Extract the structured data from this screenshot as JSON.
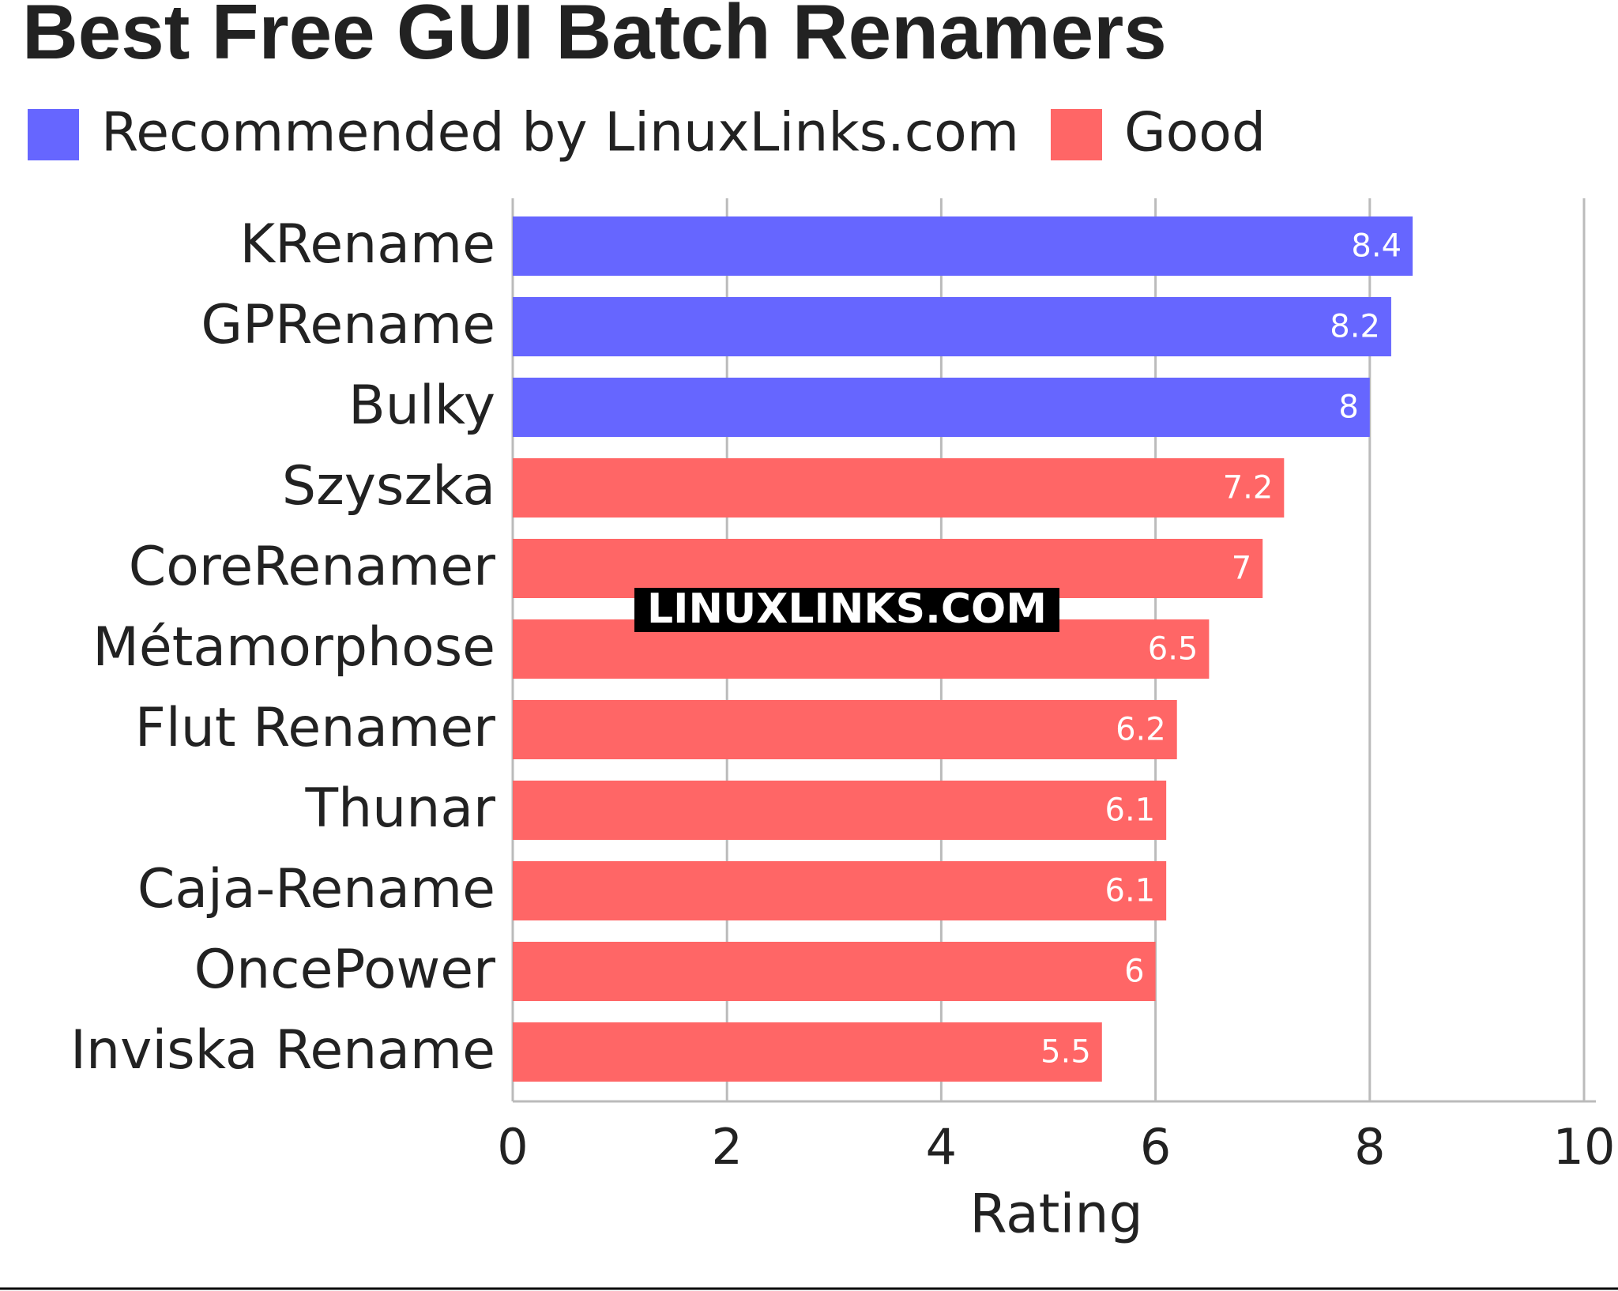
{
  "chart_data": {
    "type": "bar",
    "orientation": "horizontal",
    "title": "Best Free GUI Batch Renamers",
    "watermark": "LINUXLINKS.COM",
    "categories": [
      "KRename",
      "GPRename",
      "Bulky",
      "Szyszka",
      "CoreRenamer",
      "Métamorphose",
      "Flut Renamer",
      "Thunar",
      "Caja-Rename",
      "OncePower",
      "Inviska Rename"
    ],
    "series": [
      {
        "name": "Recommended by LinuxLinks.com",
        "color": "#6666ff",
        "values": [
          8.4,
          8.2,
          8,
          null,
          null,
          null,
          null,
          null,
          null,
          null,
          null
        ]
      },
      {
        "name": "Good",
        "color": "#ff6666",
        "values": [
          null,
          null,
          null,
          7.2,
          7,
          6.5,
          6.2,
          6.1,
          6.1,
          6,
          5.5
        ]
      }
    ],
    "xlabel": "Rating",
    "xlim": [
      0,
      10
    ],
    "xticks": [
      0,
      2,
      4,
      6,
      8,
      10
    ],
    "grid": true,
    "legend": "top"
  }
}
